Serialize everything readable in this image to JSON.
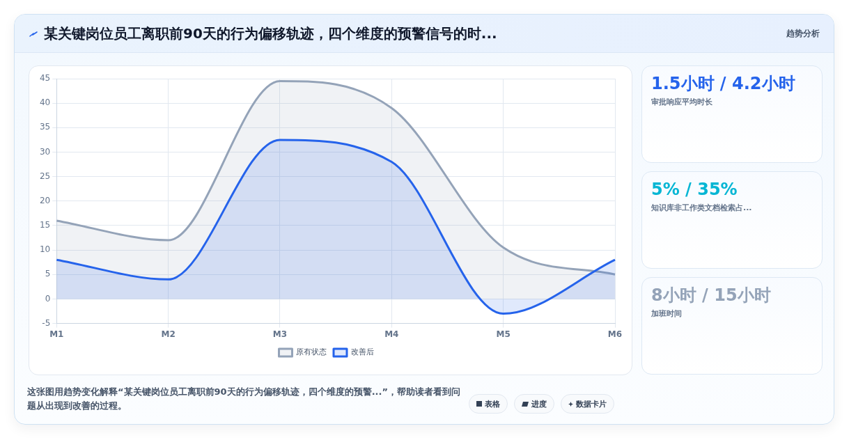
{
  "chart_data": [
    {
      "type": "other",
      "title": "某关键岗位员工离职前90天的行为偏移轨迹，四个维度的预警信号的时...",
      "annotations": [
        "趋势分析"
      ]
    },
    {
      "type": "area",
      "categories": [
        "M1",
        "M2",
        "M3",
        "M4",
        "M5",
        "M6"
      ],
      "series": [
        {
          "name": "原有状态",
          "color": "#94a3b8",
          "values": [
            16,
            12,
            44.5,
            39,
            10.5,
            5
          ]
        },
        {
          "name": "改善后",
          "color": "#2563eb",
          "values": [
            8,
            4,
            32.5,
            28,
            -3,
            8
          ]
        }
      ],
      "ylim": [
        -5,
        45
      ],
      "yticks": [
        -5,
        0,
        5,
        10,
        15,
        20,
        25,
        30,
        35,
        40,
        45
      ],
      "grid": true,
      "legend": "bottom",
      "annotations": [
        "这张图用趋势变化解释“某关键岗位员工离职前90天的行为偏移轨迹，四个维度的预警...”，帮助读者看到问题从出现到改善的过程。",
        "表格",
        "进度",
        "数据卡片"
      ]
    },
    {
      "type": "other",
      "title": "1.5小时 / 4.2小时",
      "subtitle": "审批响应平均时长",
      "color": "#2563eb"
    },
    {
      "type": "other",
      "title": "5% / 35%",
      "subtitle": "知识库非工作类文档检索占...",
      "color": "#06b6d4"
    },
    {
      "type": "other",
      "title": "8小时 / 15小时",
      "subtitle": "加班时间",
      "color": "#94a3b8"
    }
  ]
}
